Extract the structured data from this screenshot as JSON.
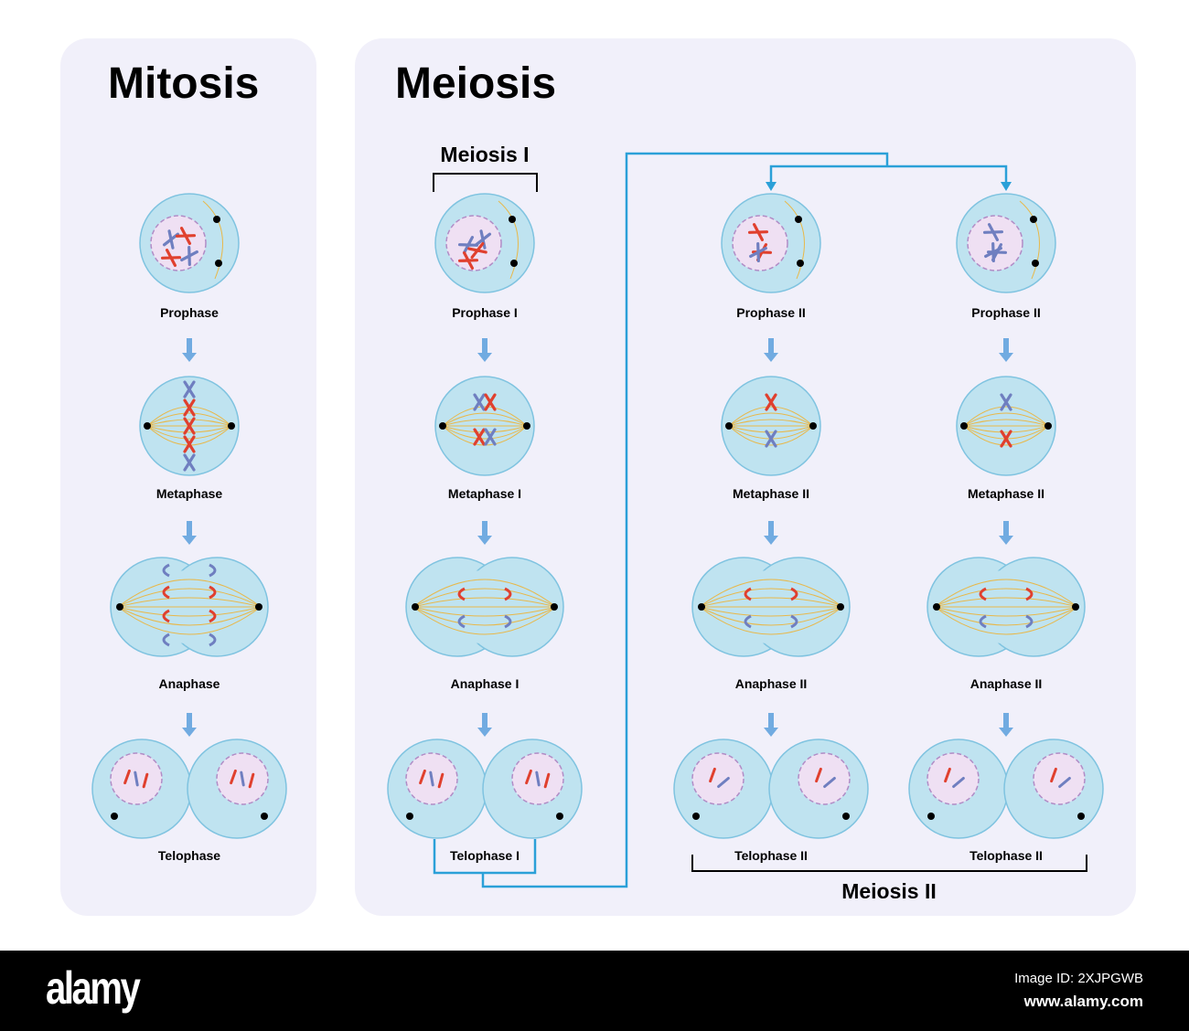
{
  "titles": {
    "mitosis": "Mitosis",
    "meiosis": "Meiosis",
    "meiosis_1": "Meiosis I",
    "meiosis_2": "Meiosis II"
  },
  "mitosis_labels": [
    "Prophase",
    "Metaphase",
    "Anaphase",
    "Telophase"
  ],
  "meiosis1_labels": [
    "Prophase I",
    "Metaphase I",
    "Anaphase I",
    "Telophase I"
  ],
  "meiosis2a_labels": [
    "Prophase II",
    "Metaphase II",
    "Anaphase II",
    "Telophase II"
  ],
  "meiosis2b_labels": [
    "Prophase II",
    "Metaphase II",
    "Anaphase II",
    "Telophase II"
  ],
  "colors": {
    "panel": "#f1f0fa",
    "cell": "#bfe3f0",
    "cell_border": "#7fc3e0",
    "nucleus": "#efe0f3",
    "red_chromosome": "#e0402e",
    "blue_chromosome": "#6f7fc0",
    "spindle": "#e8b84a",
    "connector": "#2ba0d8",
    "arrow": "#5b9fdc"
  },
  "footer": {
    "logo": "alamy",
    "image_id": "Image ID: 2XJPGWB",
    "url": "www.alamy.com"
  }
}
